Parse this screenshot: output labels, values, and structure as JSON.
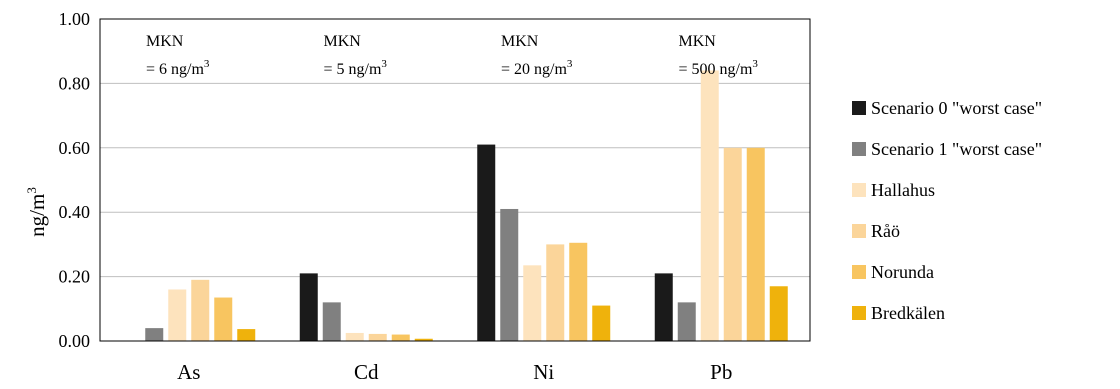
{
  "chart_data": {
    "type": "bar",
    "title": "",
    "xlabel": "",
    "ylabel": "ng/m3",
    "ylabel_base": "ng/m",
    "ylabel_sup": "3",
    "ylim": [
      0,
      1.0
    ],
    "yticks": [
      "0.00",
      "0.20",
      "0.40",
      "0.60",
      "0.80",
      "1.00"
    ],
    "categories": [
      "As",
      "Cd",
      "Ni",
      "Pb"
    ],
    "grid": true,
    "legend_position": "right",
    "series": [
      {
        "name": "Scenario 0 \"worst case\"",
        "color": "#1a1a1a",
        "values": [
          0.0,
          0.21,
          0.61,
          0.21
        ]
      },
      {
        "name": "Scenario 1 \"worst case\"",
        "color": "#808080",
        "values": [
          0.04,
          0.12,
          0.41,
          0.12
        ]
      },
      {
        "name": "Hallahus",
        "color": "#fde3bd",
        "values": [
          0.16,
          0.025,
          0.235,
          0.84
        ]
      },
      {
        "name": "Råö",
        "color": "#fbd59a",
        "values": [
          0.19,
          0.022,
          0.3,
          0.6
        ]
      },
      {
        "name": "Norunda",
        "color": "#f8c560",
        "values": [
          0.135,
          0.02,
          0.305,
          0.6
        ]
      },
      {
        "name": "Bredkälen",
        "color": "#efb20c",
        "values": [
          0.037,
          0.007,
          0.11,
          0.17
        ]
      }
    ],
    "annotations": [
      {
        "category": "As",
        "line1": "MKN",
        "line2_base": "= 6 ng/m",
        "line2_sup": "3"
      },
      {
        "category": "Cd",
        "line1": "MKN",
        "line2_base": "= 5 ng/m",
        "line2_sup": "3"
      },
      {
        "category": "Ni",
        "line1": "MKN",
        "line2_base": "= 20 ng/m",
        "line2_sup": "3"
      },
      {
        "category": "Pb",
        "line1": "MKN",
        "line2_base": "= 500 ng/m",
        "line2_sup": "3"
      }
    ]
  }
}
